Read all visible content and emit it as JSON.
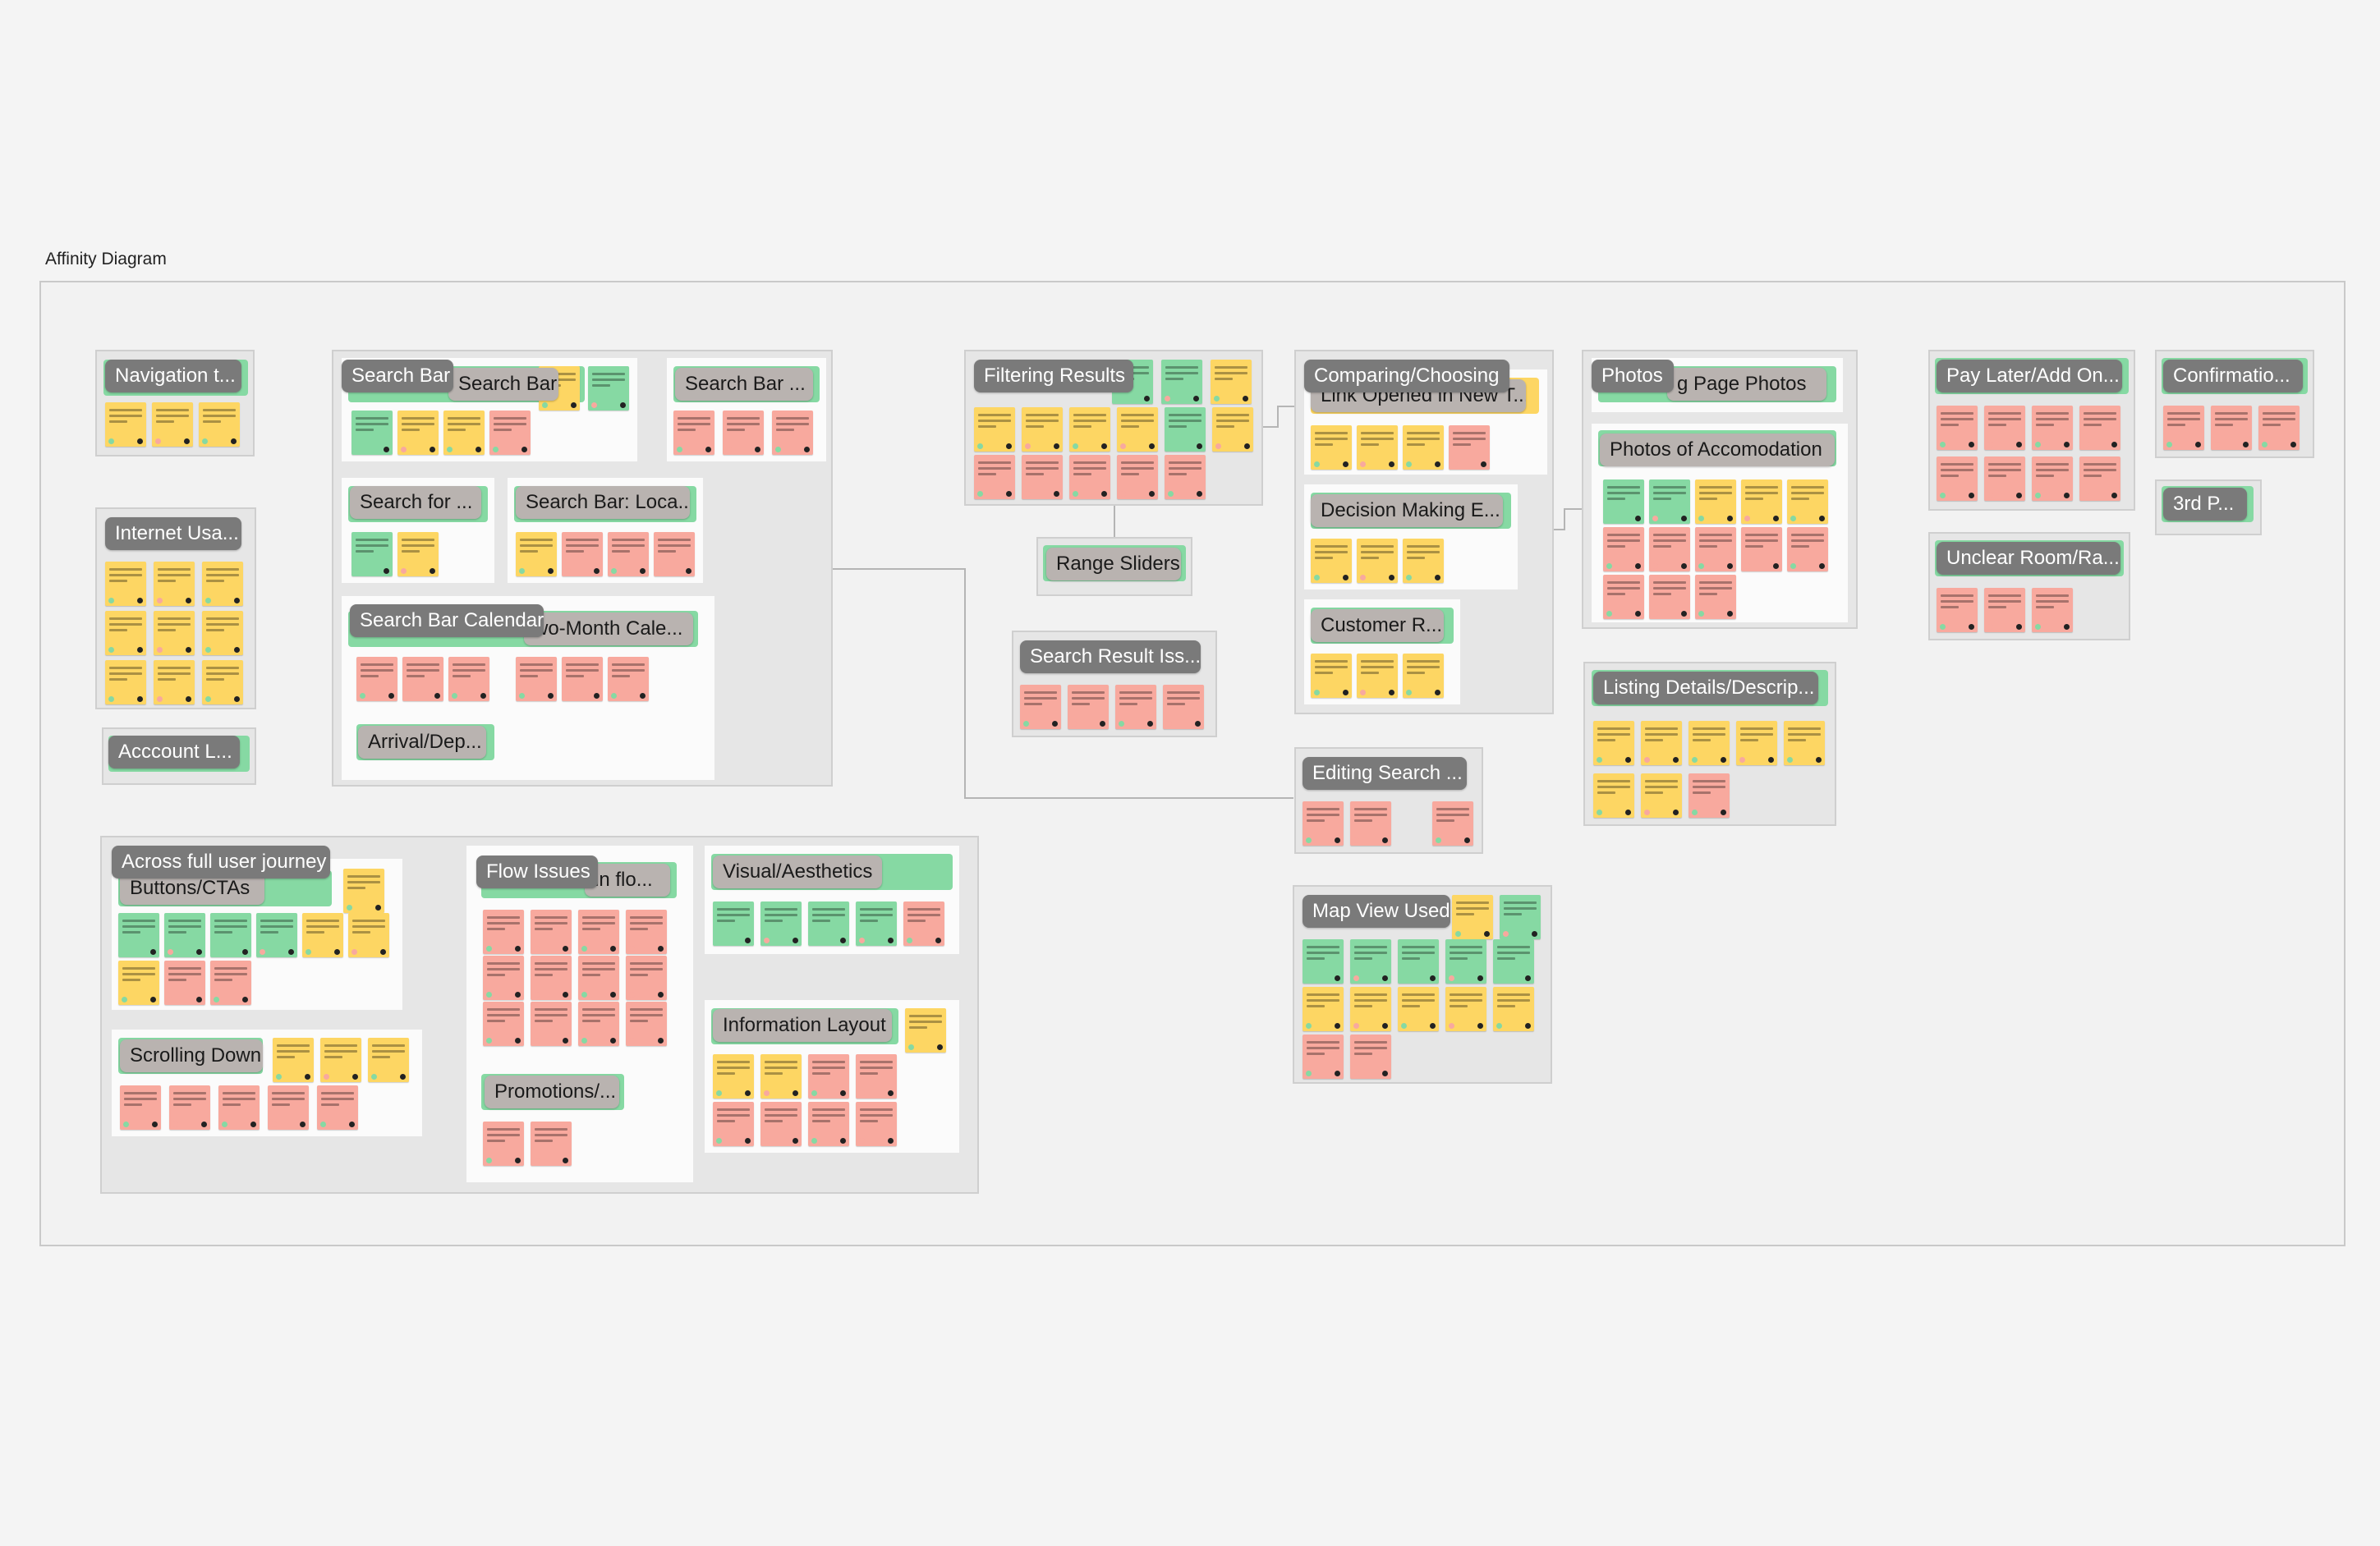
{
  "frame_title": "Affinity Diagram",
  "colors": {
    "green_note": "#86d9a3",
    "yellow_note": "#fdd663",
    "pink_note": "#f8a99e",
    "label_dark": "#7a7a7a",
    "label_light": "#b9b3b0"
  },
  "labels": {
    "navigation": "Navigation t...",
    "internet": "Internet Usa...",
    "account": "Acccount L...",
    "search_bar_group": "Search Bar",
    "search_bar_inner": "Search Bar",
    "search_bar_right": "Search Bar ...",
    "search_for": "Search for ...",
    "search_bar_loca": "Search Bar: Loca...",
    "search_bar_calendar": "Search Bar Calendar",
    "two_month": "wo-Month Cale...",
    "arrival": "Arrival/Dep...",
    "filtering": "Filtering Results",
    "range_sliders": "Range Sliders",
    "search_result_iss": "Search Result Iss...",
    "comparing": "Comparing/Choosing",
    "link_opened": "Link Opened in New T...",
    "decision": "Decision Making E...",
    "customer": "Customer R...",
    "editing": "Editing Search ...",
    "map_view": "Map View Used",
    "photos": "Photos",
    "listing_page_photos": "g Page Photos",
    "photos_accom": "Photos of Accomodation",
    "listing_details": "Listing Details/Descrip...",
    "pay_later": "Pay Later/Add On...",
    "confirmation": "Confirmatio...",
    "third_p": "3rd P...",
    "unclear": "Unclear Room/Ra...",
    "across": "Across full user journey",
    "buttons": "Buttons/CTAs",
    "flow_issues": "Flow Issues",
    "in_flo": "in flo...",
    "visual": "Visual/Aesthetics",
    "scrolling": "Scrolling Down",
    "promotions": "Promotions/...",
    "info_layout": "Information Layout"
  }
}
